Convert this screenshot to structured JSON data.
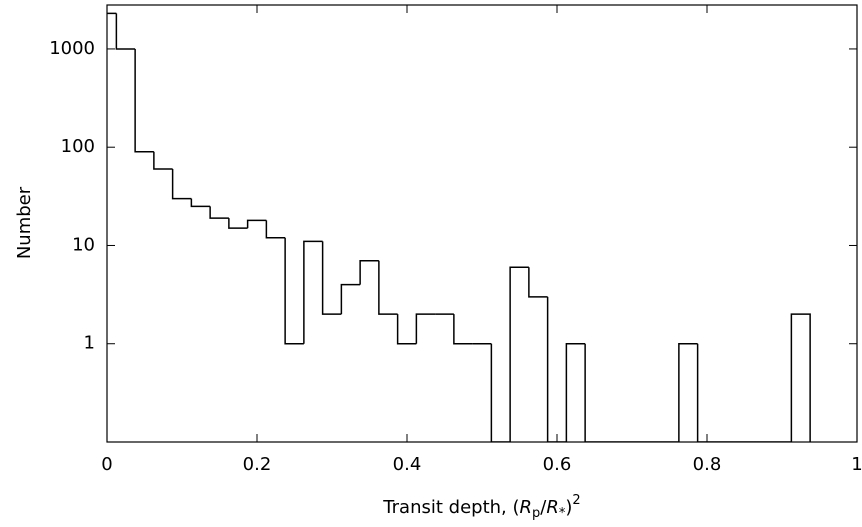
{
  "chart_data": {
    "type": "histogram",
    "xlabel": [
      "Transit depth, (",
      "R",
      "p",
      "/",
      "R",
      "*",
      ")",
      "2"
    ],
    "ylabel": "Number",
    "bins": [
      -0.0125,
      0.0125,
      0.0375,
      0.0625,
      0.0875,
      0.1125,
      0.1375,
      0.1625,
      0.1875,
      0.2125,
      0.2375,
      0.2625,
      0.2875,
      0.3125,
      0.3375,
      0.3625,
      0.3875,
      0.4125,
      0.4375,
      0.4625,
      0.4875,
      0.5125,
      0.5375,
      0.5625,
      0.5875,
      0.6125,
      0.6375,
      0.6625,
      0.6875,
      0.7125,
      0.7375,
      0.7625,
      0.7875,
      0.8125,
      0.8375,
      0.8625,
      0.8875,
      0.9125,
      0.9375
    ],
    "values": [
      2300,
      1000,
      90,
      60,
      30,
      25,
      19,
      15,
      18,
      12,
      1,
      11,
      2,
      4,
      7,
      2,
      1,
      2,
      2,
      1,
      1,
      0,
      6,
      3,
      0,
      1,
      0,
      0,
      0,
      0,
      0,
      1,
      0,
      0,
      0,
      0,
      0,
      2
    ],
    "color": "#000000",
    "xlim": [
      0,
      1
    ],
    "xticks": [
      0,
      0.2,
      0.4,
      0.6,
      0.8,
      1
    ],
    "ylim": [
      0.1,
      2800
    ],
    "yticks": [
      1,
      10,
      100,
      1000
    ],
    "yscale": "log"
  }
}
